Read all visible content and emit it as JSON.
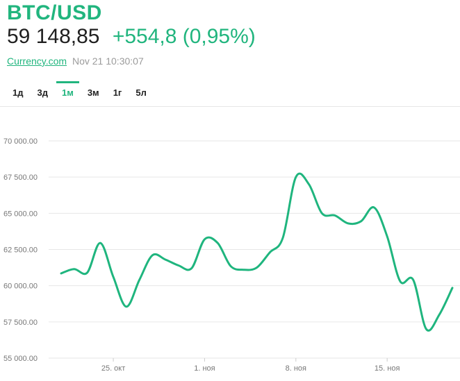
{
  "header": {
    "symbol": "BTC/USD",
    "price": "59 148,85",
    "change": "+554,8 (0,95%)",
    "source": "Currency.com",
    "timestamp": "Nov 21 10:30:07"
  },
  "tabs": [
    {
      "label": "1д",
      "active": false
    },
    {
      "label": "3д",
      "active": false
    },
    {
      "label": "1м",
      "active": true
    },
    {
      "label": "3м",
      "active": false
    },
    {
      "label": "1г",
      "active": false
    },
    {
      "label": "5л",
      "active": false
    }
  ],
  "colors": {
    "accent": "#21b57e",
    "line": "#1fb57e",
    "grid": "#e6e6e6",
    "axis_text": "#777777"
  },
  "chart_data": {
    "type": "line",
    "ylim": [
      55000,
      70000
    ],
    "grid": true,
    "yticks": [
      {
        "value": 55000,
        "label": "55 000.00"
      },
      {
        "value": 57500,
        "label": "57 500.00"
      },
      {
        "value": 60000,
        "label": "60 000.00"
      },
      {
        "value": 62500,
        "label": "62 500.00"
      },
      {
        "value": 65000,
        "label": "65 000.00"
      },
      {
        "value": 67500,
        "label": "67 500.00"
      },
      {
        "value": 70000,
        "label": "70 000.00"
      }
    ],
    "xticks": [
      {
        "date": "2021-10-25",
        "label": "25. окт"
      },
      {
        "date": "2021-11-01",
        "label": "1. ноя"
      },
      {
        "date": "2021-11-08",
        "label": "8. ноя"
      },
      {
        "date": "2021-11-15",
        "label": "15. ноя"
      }
    ],
    "xlim": [
      "2021-10-21",
      "2021-11-21"
    ],
    "series": [
      {
        "points": [
          {
            "x": "2021-10-21",
            "y": 60850
          },
          {
            "x": "2021-10-22",
            "y": 61150
          },
          {
            "x": "2021-10-23",
            "y": 60900
          },
          {
            "x": "2021-10-24",
            "y": 62950
          },
          {
            "x": "2021-10-25",
            "y": 60600
          },
          {
            "x": "2021-10-26",
            "y": 58550
          },
          {
            "x": "2021-10-27",
            "y": 60400
          },
          {
            "x": "2021-10-28",
            "y": 62100
          },
          {
            "x": "2021-10-29",
            "y": 61800
          },
          {
            "x": "2021-10-30",
            "y": 61400
          },
          {
            "x": "2021-10-31",
            "y": 61200
          },
          {
            "x": "2021-11-01",
            "y": 63200
          },
          {
            "x": "2021-11-02",
            "y": 62950
          },
          {
            "x": "2021-11-03",
            "y": 61350
          },
          {
            "x": "2021-11-04",
            "y": 61100
          },
          {
            "x": "2021-11-05",
            "y": 61250
          },
          {
            "x": "2021-11-06",
            "y": 62300
          },
          {
            "x": "2021-11-07",
            "y": 63300
          },
          {
            "x": "2021-11-08",
            "y": 67500
          },
          {
            "x": "2021-11-09",
            "y": 67000
          },
          {
            "x": "2021-11-10",
            "y": 65000
          },
          {
            "x": "2021-11-11",
            "y": 64850
          },
          {
            "x": "2021-11-12",
            "y": 64300
          },
          {
            "x": "2021-11-13",
            "y": 64450
          },
          {
            "x": "2021-11-14",
            "y": 65400
          },
          {
            "x": "2021-11-15",
            "y": 63400
          },
          {
            "x": "2021-11-16",
            "y": 60300
          },
          {
            "x": "2021-11-17",
            "y": 60400
          },
          {
            "x": "2021-11-18",
            "y": 57000
          },
          {
            "x": "2021-11-19",
            "y": 58000
          },
          {
            "x": "2021-11-20",
            "y": 59850
          }
        ]
      }
    ]
  }
}
